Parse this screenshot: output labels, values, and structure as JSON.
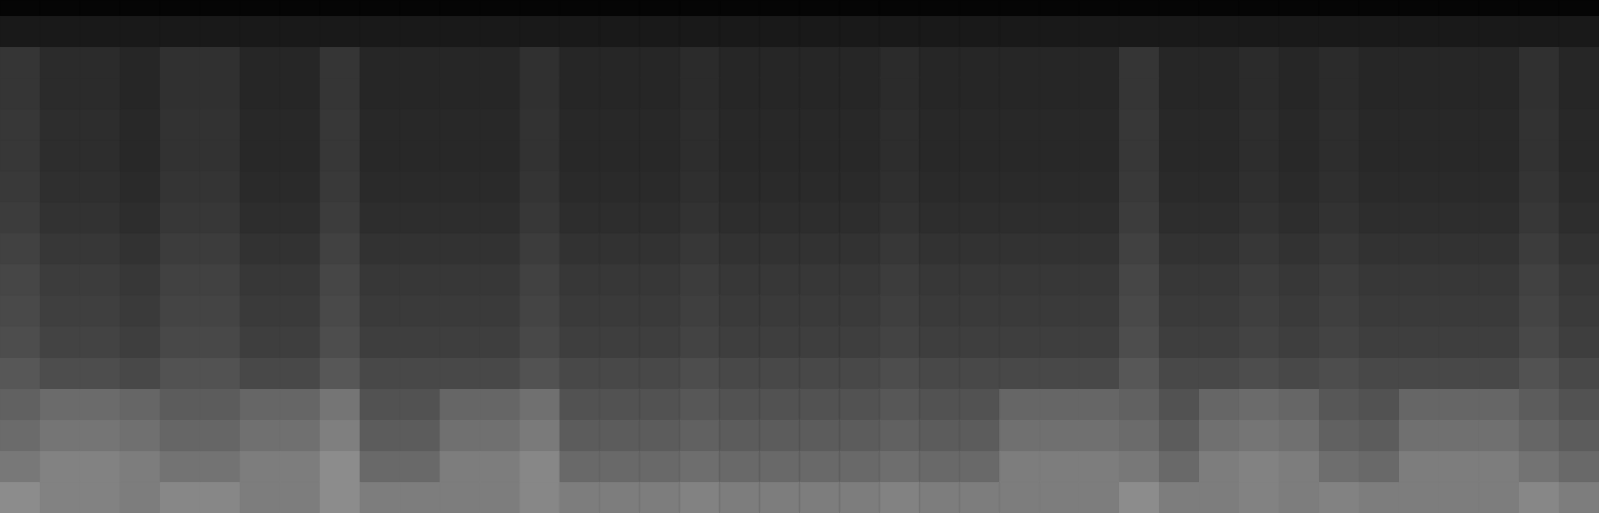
{
  "chart_data": {
    "type": "heatmap",
    "categories": [
      null,
      null,
      null,
      null,
      null,
      null,
      null,
      null,
      null,
      null,
      null,
      null,
      null,
      null,
      null,
      null,
      null,
      null,
      null,
      null,
      null,
      null,
      null,
      null,
      null,
      null,
      null,
      null,
      null,
      null,
      null,
      null,
      null,
      null,
      null,
      null,
      null,
      null,
      null,
      null
    ],
    "y_bins": [
      0,
      0.5,
      1.5,
      2.5,
      3.5,
      4.5,
      5.5,
      6.5,
      7.5,
      8.5,
      9.5,
      10.5,
      11.5,
      12.5,
      13.5,
      14.5,
      15.5,
      16.5
    ],
    "ylim": [
      0,
      16.5
    ],
    "color_range": [
      0,
      255
    ],
    "grid": false,
    "tick_labels": false,
    "cells": [
      [
        5,
        5,
        5,
        5,
        5,
        5,
        5,
        5,
        5,
        5,
        5,
        5,
        5,
        5,
        5,
        5,
        5,
        5,
        5,
        5,
        5,
        5,
        5,
        5,
        5,
        5,
        5,
        5,
        5,
        5,
        5,
        5,
        5,
        5,
        5,
        5,
        5,
        5,
        5,
        5
      ],
      [
        25,
        25,
        25,
        25,
        25,
        25,
        25,
        25,
        25,
        25,
        25,
        25,
        25,
        25,
        25,
        25,
        25,
        25,
        25,
        25,
        25,
        25,
        25,
        25,
        25,
        25,
        25,
        25,
        25,
        25,
        25,
        25,
        25,
        25,
        25,
        25,
        25,
        25,
        25,
        25
      ],
      [
        53,
        43,
        43,
        38,
        48,
        48,
        38,
        38,
        53,
        38,
        38,
        38,
        38,
        48,
        38,
        38,
        38,
        43,
        38,
        38,
        38,
        38,
        43,
        38,
        38,
        38,
        38,
        38,
        53,
        38,
        38,
        43,
        38,
        43,
        38,
        38,
        38,
        38,
        48,
        38
      ],
      [
        53,
        43,
        43,
        38,
        48,
        48,
        38,
        38,
        53,
        38,
        38,
        38,
        38,
        48,
        38,
        38,
        38,
        43,
        38,
        38,
        38,
        38,
        43,
        38,
        38,
        38,
        38,
        38,
        53,
        38,
        38,
        43,
        38,
        43,
        38,
        38,
        38,
        38,
        48,
        38
      ],
      [
        55,
        45,
        45,
        40,
        50,
        50,
        40,
        40,
        55,
        40,
        40,
        40,
        40,
        50,
        40,
        40,
        40,
        45,
        40,
        40,
        40,
        40,
        45,
        40,
        40,
        40,
        40,
        40,
        55,
        40,
        40,
        45,
        40,
        45,
        40,
        40,
        40,
        40,
        50,
        40
      ],
      [
        55,
        45,
        45,
        40,
        50,
        50,
        40,
        40,
        55,
        40,
        40,
        40,
        40,
        50,
        40,
        40,
        40,
        45,
        40,
        40,
        40,
        40,
        45,
        40,
        40,
        40,
        40,
        40,
        55,
        40,
        40,
        45,
        40,
        45,
        40,
        40,
        40,
        40,
        50,
        40
      ],
      [
        57,
        47,
        47,
        42,
        52,
        52,
        42,
        42,
        57,
        42,
        42,
        42,
        42,
        52,
        42,
        42,
        42,
        47,
        42,
        42,
        42,
        42,
        47,
        42,
        42,
        42,
        42,
        42,
        57,
        42,
        42,
        47,
        42,
        47,
        42,
        42,
        42,
        42,
        52,
        42
      ],
      [
        60,
        50,
        50,
        45,
        55,
        55,
        45,
        45,
        60,
        45,
        45,
        45,
        45,
        55,
        45,
        45,
        45,
        50,
        45,
        45,
        45,
        45,
        50,
        45,
        45,
        45,
        45,
        45,
        60,
        45,
        45,
        50,
        45,
        50,
        45,
        45,
        45,
        45,
        55,
        45
      ],
      [
        65,
        55,
        55,
        50,
        60,
        60,
        50,
        50,
        65,
        50,
        50,
        50,
        50,
        60,
        50,
        50,
        50,
        55,
        50,
        50,
        50,
        50,
        55,
        50,
        50,
        50,
        50,
        50,
        65,
        50,
        50,
        55,
        50,
        55,
        50,
        50,
        50,
        50,
        60,
        50
      ],
      [
        70,
        60,
        60,
        55,
        65,
        65,
        55,
        55,
        70,
        55,
        55,
        55,
        55,
        65,
        55,
        55,
        55,
        60,
        55,
        55,
        55,
        55,
        60,
        55,
        55,
        55,
        55,
        55,
        70,
        55,
        55,
        60,
        55,
        60,
        55,
        55,
        55,
        55,
        65,
        55
      ],
      [
        73,
        63,
        63,
        58,
        68,
        68,
        58,
        58,
        73,
        58,
        58,
        58,
        58,
        68,
        58,
        58,
        58,
        63,
        58,
        58,
        58,
        58,
        63,
        58,
        58,
        58,
        58,
        58,
        73,
        58,
        58,
        63,
        58,
        63,
        58,
        58,
        58,
        58,
        68,
        58
      ],
      [
        77,
        67,
        67,
        62,
        72,
        72,
        62,
        62,
        77,
        62,
        62,
        62,
        62,
        72,
        62,
        62,
        62,
        67,
        62,
        62,
        62,
        62,
        67,
        62,
        62,
        62,
        62,
        62,
        77,
        62,
        62,
        67,
        62,
        67,
        62,
        62,
        62,
        62,
        72,
        62
      ],
      [
        87,
        77,
        77,
        72,
        82,
        82,
        72,
        72,
        87,
        72,
        72,
        72,
        72,
        82,
        72,
        72,
        72,
        77,
        72,
        72,
        72,
        72,
        77,
        72,
        72,
        72,
        72,
        72,
        87,
        72,
        72,
        77,
        72,
        77,
        72,
        72,
        72,
        72,
        82,
        72
      ],
      [
        97,
        107,
        107,
        102,
        92,
        92,
        102,
        102,
        117,
        82,
        82,
        102,
        102,
        112,
        82,
        82,
        82,
        87,
        82,
        82,
        82,
        82,
        87,
        82,
        82,
        102,
        102,
        102,
        97,
        82,
        102,
        107,
        102,
        87,
        82,
        102,
        102,
        102,
        92,
        82
      ],
      [
        107,
        117,
        117,
        112,
        102,
        102,
        112,
        112,
        127,
        92,
        92,
        112,
        112,
        122,
        92,
        92,
        92,
        97,
        92,
        92,
        92,
        92,
        97,
        92,
        92,
        112,
        112,
        112,
        107,
        92,
        112,
        117,
        112,
        97,
        92,
        112,
        112,
        112,
        102,
        92
      ],
      [
        120,
        130,
        130,
        125,
        115,
        115,
        125,
        125,
        140,
        105,
        105,
        125,
        125,
        135,
        105,
        105,
        105,
        110,
        105,
        105,
        105,
        105,
        110,
        105,
        105,
        125,
        125,
        125,
        120,
        105,
        125,
        130,
        125,
        110,
        105,
        125,
        125,
        125,
        115,
        105
      ],
      [
        140,
        130,
        130,
        125,
        135,
        135,
        125,
        125,
        140,
        125,
        125,
        125,
        125,
        135,
        125,
        125,
        125,
        130,
        125,
        125,
        125,
        125,
        130,
        125,
        125,
        125,
        125,
        125,
        140,
        125,
        125,
        130,
        125,
        130,
        125,
        125,
        125,
        125,
        135,
        125
      ]
    ]
  }
}
